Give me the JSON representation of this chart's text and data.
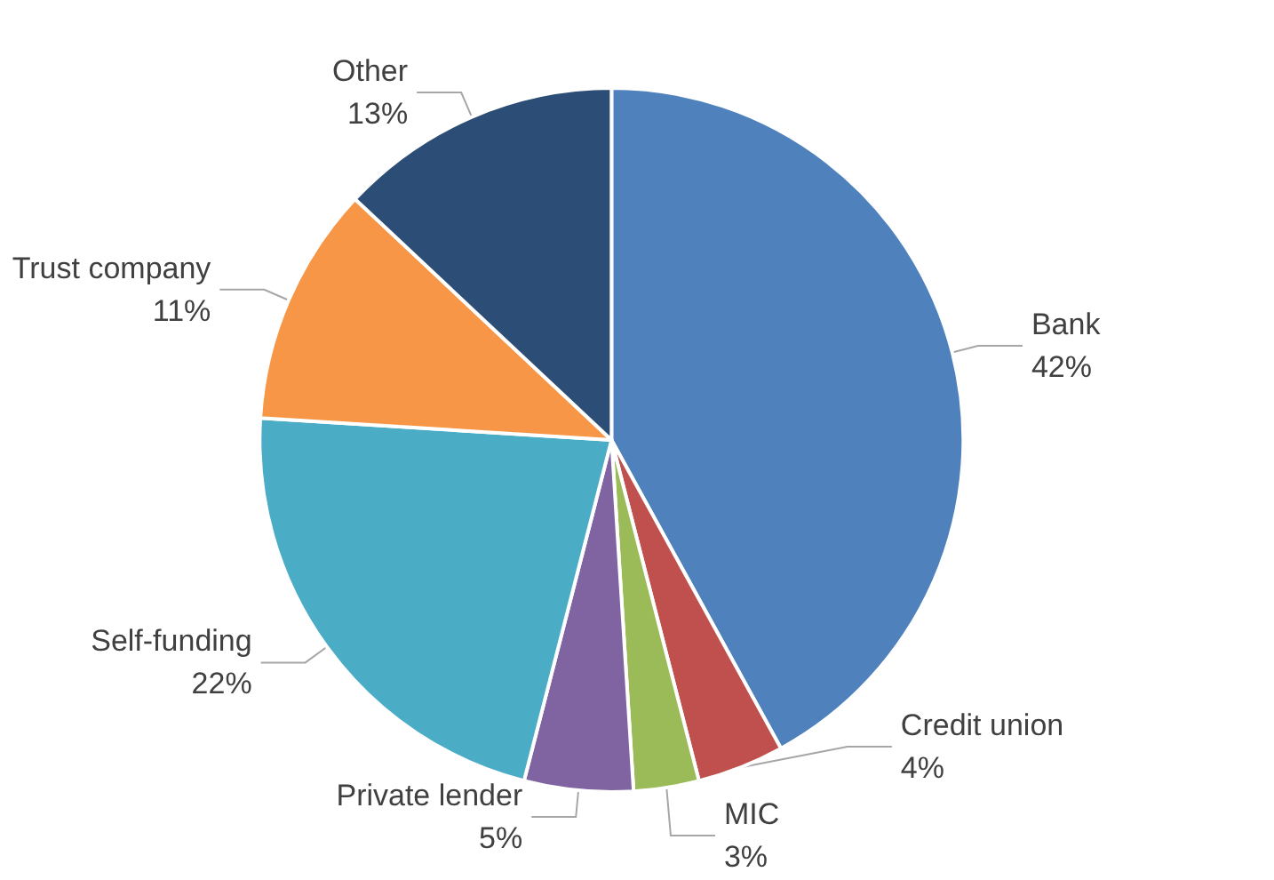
{
  "chart_data": {
    "type": "pie",
    "categories": [
      "Bank",
      "Credit union",
      "MIC",
      "Private lender",
      "Self-funding",
      "Trust company",
      "Other"
    ],
    "values": [
      42,
      4,
      3,
      5,
      22,
      11,
      13
    ],
    "value_labels": [
      "42%",
      "4%",
      "3%",
      "5%",
      "22%",
      "11%",
      "13%"
    ],
    "colors": [
      "#4f81bd",
      "#c0504d",
      "#9bbb59",
      "#8064a2",
      "#4bacc6",
      "#f79646",
      "#2c4d75"
    ],
    "legend": false
  }
}
